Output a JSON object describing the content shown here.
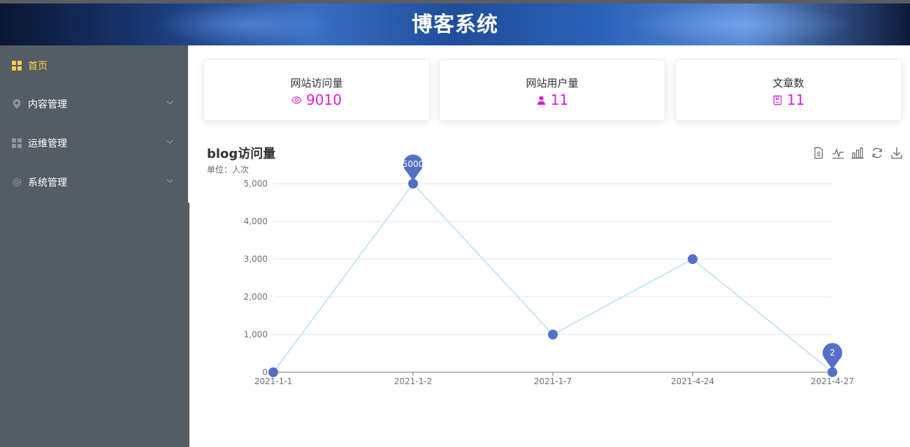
{
  "header": {
    "title": "博客系统"
  },
  "sidebar": {
    "items": [
      {
        "label": "首页",
        "icon": "grid-icon",
        "active": true,
        "has_children": false
      },
      {
        "label": "内容管理",
        "icon": "location-icon",
        "active": false,
        "has_children": true
      },
      {
        "label": "运维管理",
        "icon": "menu-icon",
        "active": false,
        "has_children": true
      },
      {
        "label": "系统管理",
        "icon": "gear-icon",
        "active": false,
        "has_children": true
      }
    ]
  },
  "cards": [
    {
      "title": "网站访问量",
      "value": "9010",
      "icon": "eye-icon"
    },
    {
      "title": "网站用户量",
      "value": "11",
      "icon": "user-icon"
    },
    {
      "title": "文章数",
      "value": "11",
      "icon": "notebook-icon"
    }
  ],
  "colors": {
    "accent": "#d61fd6",
    "active_menu": "#ffd04b",
    "sidebar_bg": "#545c64",
    "line": "#c5e6f7",
    "point": "#5470c6"
  },
  "toolbox": [
    "data-view-icon",
    "line-chart-icon",
    "bar-chart-icon",
    "restore-icon",
    "download-icon"
  ],
  "chart_data": {
    "type": "line",
    "title": "blog访问量",
    "subtitle": "单位：人次",
    "categories": [
      "2021-1-1",
      "2021-1-2",
      "2021-1-7",
      "2021-4-24",
      "2021-4-27"
    ],
    "series": [
      {
        "values": [
          0,
          5000,
          1000,
          3000,
          2
        ]
      }
    ],
    "ylim": [
      0,
      5000
    ],
    "yticks": [
      0,
      1000,
      2000,
      3000,
      4000,
      5000
    ],
    "ytick_labels": [
      "0",
      "1,000",
      "2,000",
      "3,000",
      "4,000",
      "5,000"
    ],
    "markpoints": [
      {
        "label": "5000",
        "category_index": 1
      },
      {
        "label": "2",
        "category_index": 4
      }
    ],
    "grid": true
  }
}
